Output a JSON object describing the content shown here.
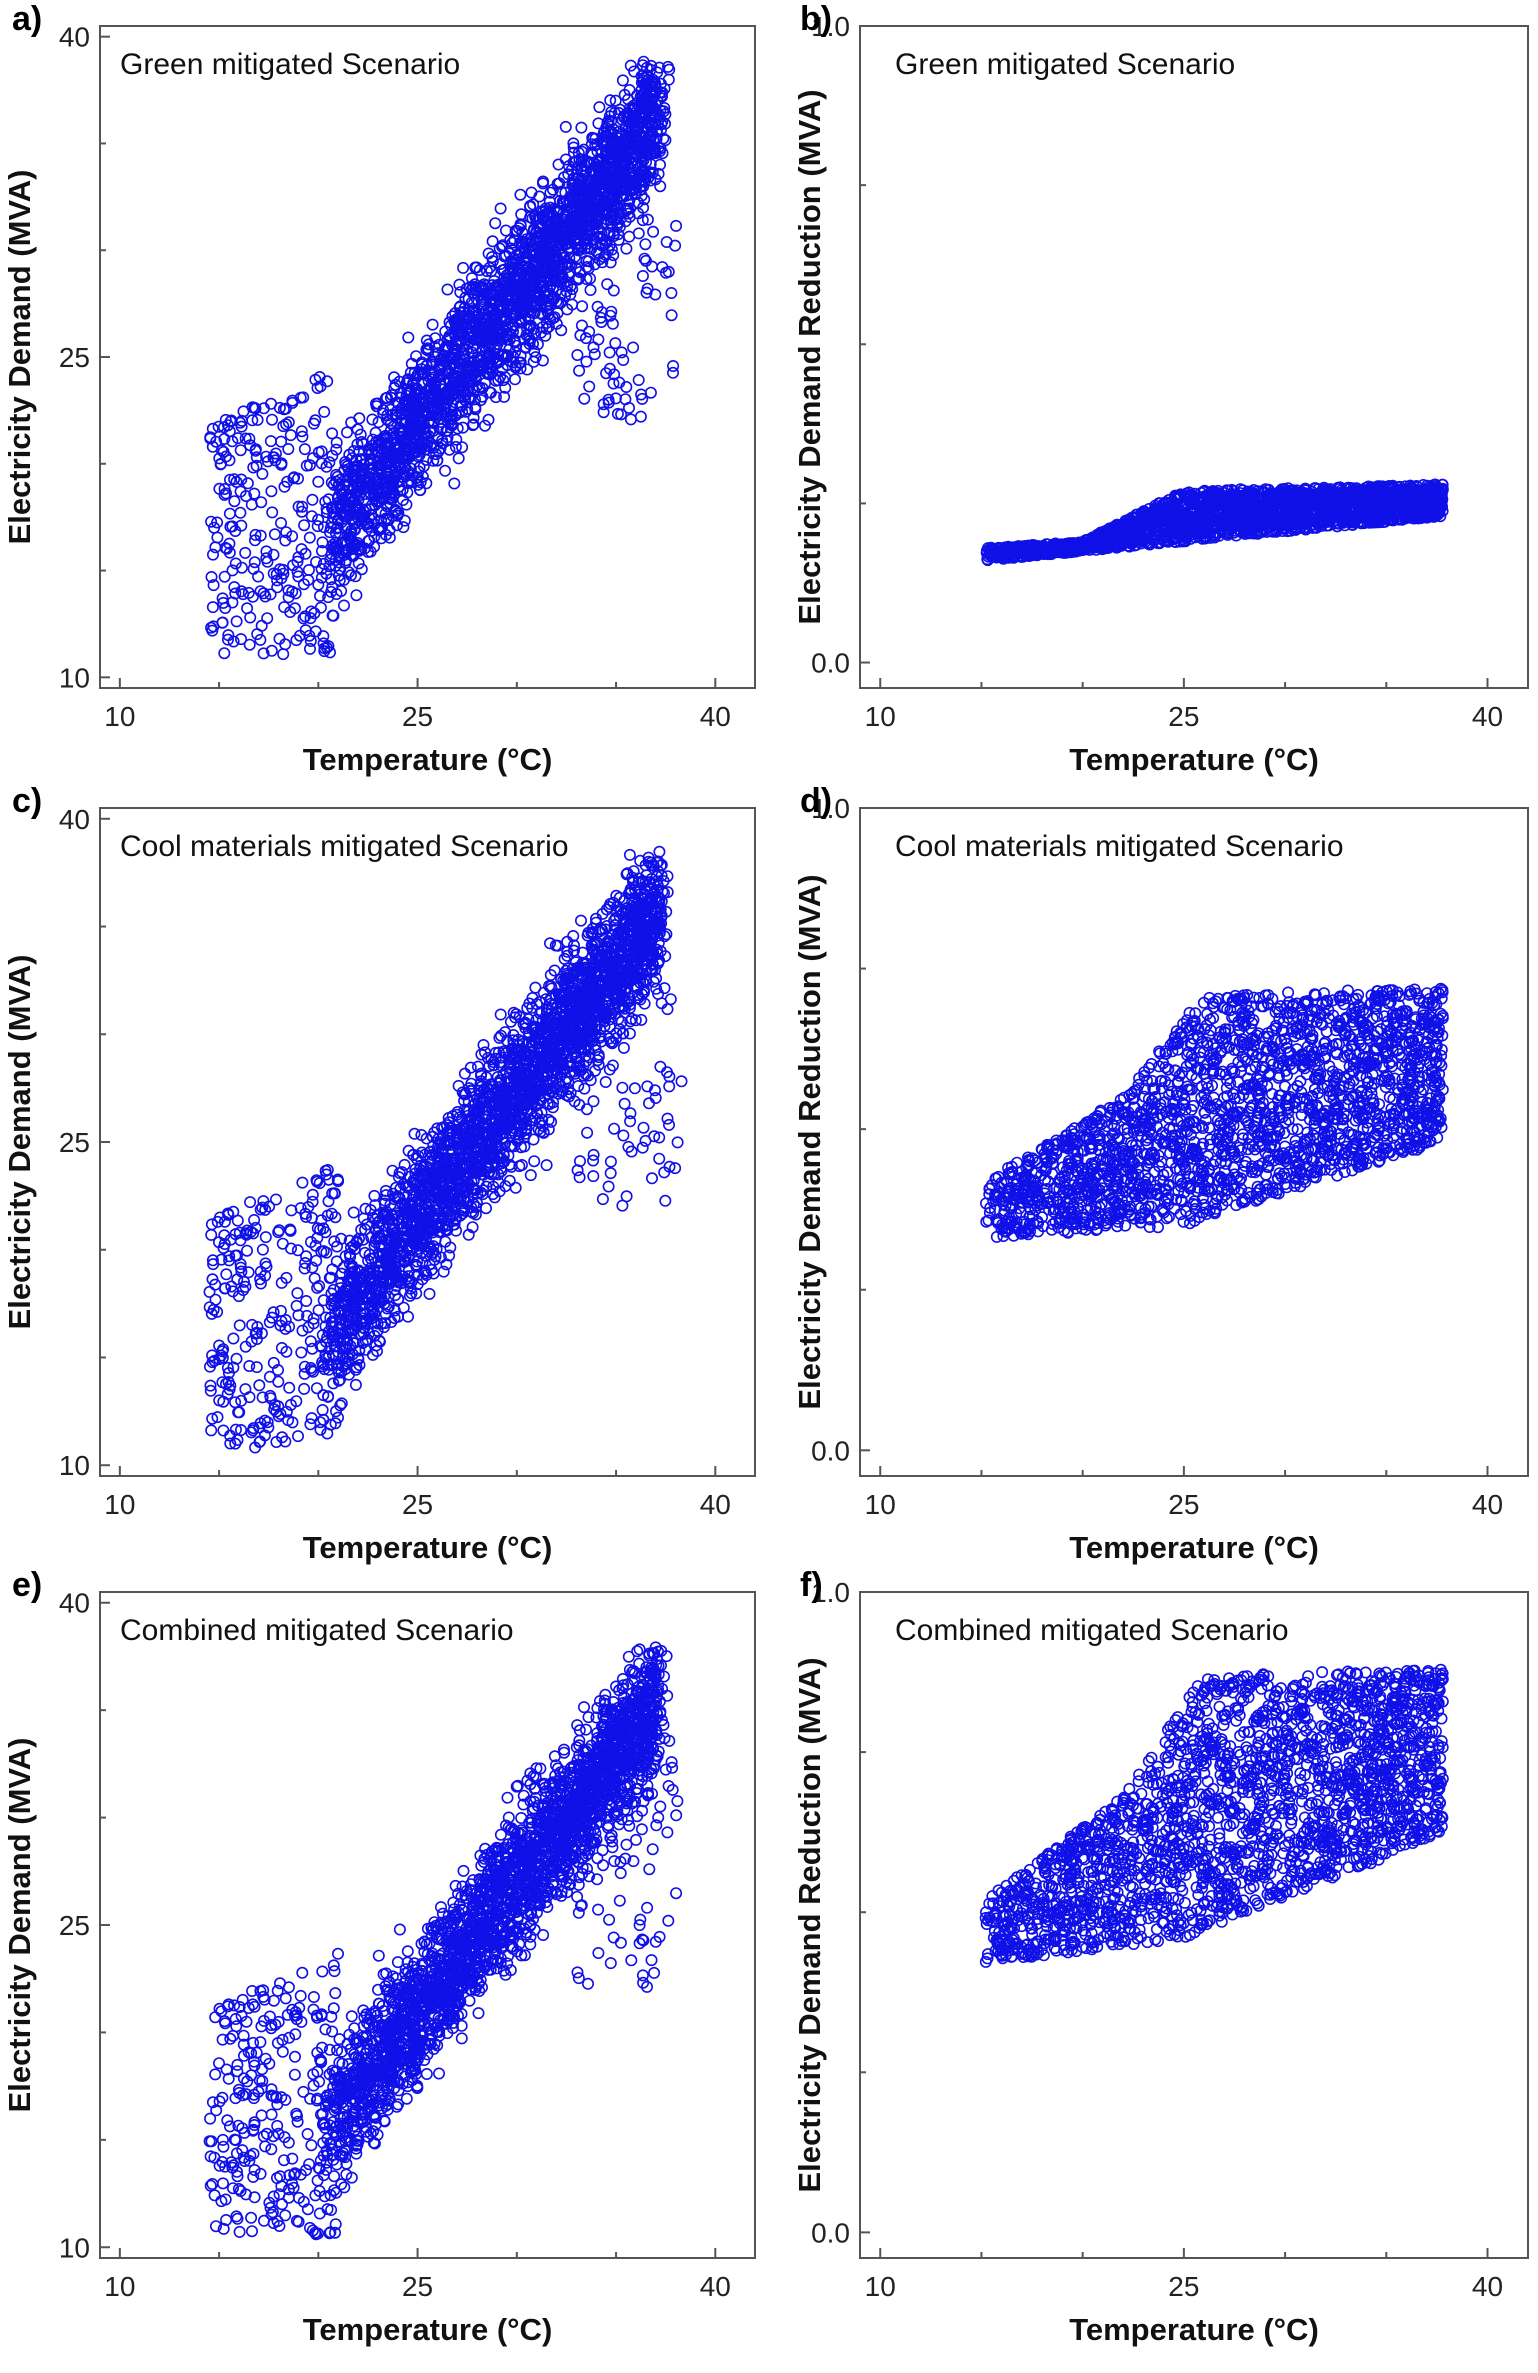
{
  "figure": {
    "marker_color": "#1010e8"
  },
  "chart_data": [
    {
      "id": "a",
      "panel_letter": "a)",
      "type": "scatter",
      "title": "Green mitigated Scenario",
      "xlabel": "Temperature (°C)",
      "ylabel": "Electricity Demand (MVA)",
      "xlim": [
        9,
        42
      ],
      "ylim": [
        9.5,
        40.5
      ],
      "xticks": [
        "10",
        "25",
        "40"
      ],
      "yticks": [
        "10",
        "25",
        "40"
      ],
      "grid": false,
      "legend": "none",
      "point_shape": "open circle",
      "distribution": {
        "kind": "demand",
        "x_range": [
          14.5,
          38.3
        ],
        "y_range": [
          10.8,
          39
        ],
        "core": {
          "x_start": 20.5,
          "x_end": 37.2,
          "y_at_start": 16.5,
          "y_at_end": 36.5,
          "spread": 5.2
        },
        "low_temp_tail": {
          "x_range": [
            14.5,
            21
          ],
          "y_range": [
            11,
            24.5
          ]
        }
      }
    },
    {
      "id": "b",
      "panel_letter": "b)",
      "type": "scatter",
      "title": "Green mitigated Scenario",
      "xlabel": "Temperature (°C)",
      "ylabel": "Electricity Demand Reduction (MVA)",
      "xlim": [
        9,
        42
      ],
      "ylim": [
        -0.04,
        1.0
      ],
      "xticks": [
        "10",
        "25",
        "40"
      ],
      "yticks": [
        "0.0",
        "1.0"
      ],
      "grid": false,
      "legend": "none",
      "point_shape": "open circle",
      "distribution": {
        "kind": "band",
        "x_range": [
          15.2,
          37.8
        ],
        "lower_edge": [
          [
            15.2,
            0.16
          ],
          [
            37.8,
            0.23
          ]
        ],
        "upper_edge": [
          [
            15.2,
            0.18
          ],
          [
            20,
            0.19
          ],
          [
            25,
            0.27
          ],
          [
            37.8,
            0.28
          ]
        ]
      }
    },
    {
      "id": "c",
      "panel_letter": "c)",
      "type": "scatter",
      "title": "Cool materials mitigated Scenario",
      "xlabel": "Temperature (°C)",
      "ylabel": "Electricity Demand (MVA)",
      "xlim": [
        9,
        42
      ],
      "ylim": [
        9.5,
        40.5
      ],
      "xticks": [
        "10",
        "25",
        "40"
      ],
      "yticks": [
        "10",
        "25",
        "40"
      ],
      "grid": false,
      "legend": "none",
      "point_shape": "open circle",
      "distribution": {
        "kind": "demand",
        "x_range": [
          14.5,
          38.3
        ],
        "y_range": [
          10.4,
          38.5
        ],
        "core": {
          "x_start": 20.5,
          "x_end": 37.2,
          "y_at_start": 16.0,
          "y_at_end": 36.0,
          "spread": 5.2
        },
        "low_temp_tail": {
          "x_range": [
            14.5,
            21
          ],
          "y_range": [
            10.8,
            24
          ]
        }
      }
    },
    {
      "id": "d",
      "panel_letter": "d)",
      "type": "scatter",
      "title": "Cool materials mitigated Scenario",
      "xlabel": "Temperature (°C)",
      "ylabel": "Electricity Demand Reduction (MVA)",
      "xlim": [
        9,
        42
      ],
      "ylim": [
        -0.04,
        1.0
      ],
      "xticks": [
        "10",
        "25",
        "40"
      ],
      "yticks": [
        "0.0",
        "1.0"
      ],
      "grid": false,
      "legend": "none",
      "point_shape": "open circle",
      "distribution": {
        "kind": "band",
        "x_range": [
          15.2,
          37.8
        ],
        "lower_edge": [
          [
            15.2,
            0.33
          ],
          [
            25,
            0.35
          ],
          [
            37.8,
            0.48
          ]
        ],
        "upper_edge": [
          [
            15.2,
            0.42
          ],
          [
            22,
            0.55
          ],
          [
            26,
            0.71
          ],
          [
            37.8,
            0.72
          ]
        ]
      }
    },
    {
      "id": "e",
      "panel_letter": "e)",
      "type": "scatter",
      "title": "Combined mitigated Scenario",
      "xlabel": "Temperature (°C)",
      "ylabel": "Electricity Demand (MVA)",
      "xlim": [
        9,
        42
      ],
      "ylim": [
        9.5,
        40.5
      ],
      "xticks": [
        "10",
        "25",
        "40"
      ],
      "yticks": [
        "10",
        "25",
        "40"
      ],
      "grid": false,
      "legend": "none",
      "point_shape": "open circle",
      "distribution": {
        "kind": "demand",
        "x_range": [
          14.5,
          38.3
        ],
        "y_range": [
          10.3,
          38
        ],
        "core": {
          "x_start": 20.5,
          "x_end": 37.2,
          "y_at_start": 15.8,
          "y_at_end": 35.6,
          "spread": 5.2
        },
        "low_temp_tail": {
          "x_range": [
            14.5,
            21
          ],
          "y_range": [
            10.6,
            23.8
          ]
        }
      }
    },
    {
      "id": "f",
      "panel_letter": "f)",
      "type": "scatter",
      "title": "Combined mitigated Scenario",
      "xlabel": "Temperature (°C)",
      "ylabel": "Electricity Demand Reduction (MVA)",
      "xlim": [
        9,
        42
      ],
      "ylim": [
        -0.04,
        1.0
      ],
      "xticks": [
        "10",
        "25",
        "40"
      ],
      "yticks": [
        "0.0",
        "1.0"
      ],
      "grid": false,
      "legend": "none",
      "point_shape": "open circle",
      "distribution": {
        "kind": "band",
        "x_range": [
          15.2,
          37.8
        ],
        "lower_edge": [
          [
            15.2,
            0.42
          ],
          [
            25,
            0.46
          ],
          [
            37.8,
            0.62
          ]
        ],
        "upper_edge": [
          [
            15.2,
            0.52
          ],
          [
            22,
            0.68
          ],
          [
            26,
            0.87
          ],
          [
            37.8,
            0.88
          ]
        ]
      }
    }
  ]
}
